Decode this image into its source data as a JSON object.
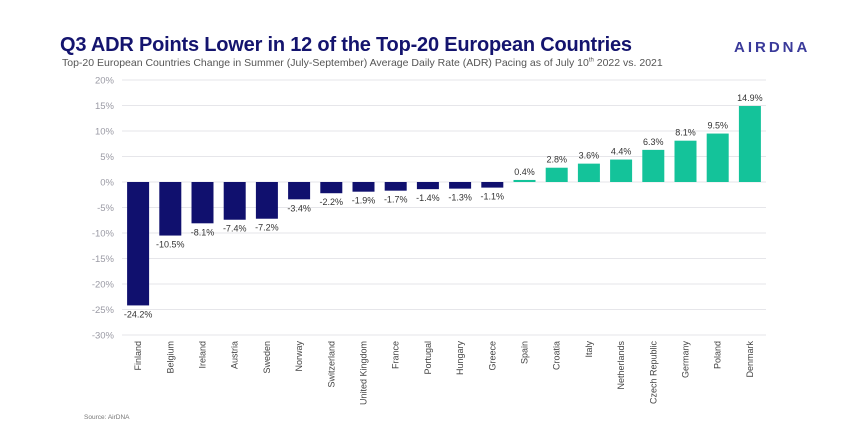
{
  "header": {
    "title": "Q3 ADR Points Lower in 12 of the Top-20 European Countries",
    "subtitle_pre": "Top-20 European Countries Change in Summer (July-September) Average Daily Rate (ADR) Pacing as of July 10",
    "subtitle_sup": "th",
    "subtitle_post": "  2022 vs. 2021",
    "logo": "AIRDNA"
  },
  "footer": {
    "source": "Source: AirDNA"
  },
  "colors": {
    "negative": "#10106e",
    "positive": "#14c39a",
    "title": "#14146e",
    "grid": "#e6e6ea"
  },
  "chart_data": {
    "type": "bar",
    "title": "Q3 ADR Points Lower in 12 of the Top-20 European Countries",
    "subtitle": "Top-20 European Countries Change in Summer (July-September) Average Daily Rate (ADR) Pacing as of July 10th 2022 vs. 2021",
    "xlabel": "",
    "ylabel": "",
    "ylim": [
      -30,
      20
    ],
    "yticks": [
      20,
      15,
      10,
      5,
      0,
      -5,
      -10,
      -15,
      -20,
      -25,
      -30
    ],
    "ytick_labels": [
      "20%",
      "15%",
      "10%",
      "5%",
      "0%",
      "-5%",
      "-10%",
      "-15%",
      "-20%",
      "-25%",
      "-30%"
    ],
    "grid": true,
    "legend": "none",
    "categories": [
      "Finland",
      "Belgium",
      "Ireland",
      "Austria",
      "Sweden",
      "Norway",
      "Switzerland",
      "United Kingdom",
      "France",
      "Portugal",
      "Hungary",
      "Greece",
      "Spain",
      "Croatia",
      "Italy",
      "Netherlands",
      "Czech Republic",
      "Germany",
      "Poland",
      "Denmark"
    ],
    "values": [
      -24.2,
      -10.5,
      -8.1,
      -7.4,
      -7.2,
      -3.4,
      -2.2,
      -1.9,
      -1.7,
      -1.4,
      -1.3,
      -1.1,
      0.4,
      2.8,
      3.6,
      4.4,
      6.3,
      8.1,
      9.5,
      14.9
    ],
    "data_labels": [
      "-24.2%",
      "-10.5%",
      "-8.1%",
      "-7.4%",
      "-7.2%",
      "-3.4%",
      "-2.2%",
      "-1.9%",
      "-1.7%",
      "-1.4%",
      "-1.3%",
      "-1.1%",
      "0.4%",
      "2.8%",
      "3.6%",
      "4.4%",
      "6.3%",
      "8.1%",
      "9.5%",
      "14.9%"
    ]
  }
}
